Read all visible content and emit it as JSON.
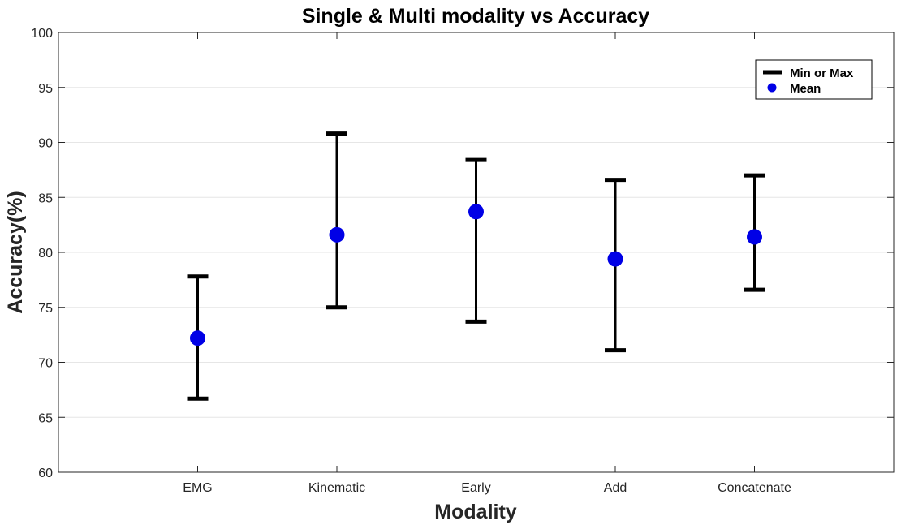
{
  "chart_data": {
    "type": "scatter",
    "title": "Single & Multi modality vs Accuracy",
    "xlabel": "Modality",
    "ylabel": "Accuracy(%)",
    "categories": [
      "EMG",
      "Kinematic",
      "Early",
      "Add",
      "Concatenate"
    ],
    "ylim": [
      60,
      100
    ],
    "yticks": [
      60,
      65,
      70,
      75,
      80,
      85,
      90,
      95,
      100
    ],
    "ytick_labels": [
      "60",
      "65",
      "70",
      "75",
      "80",
      "85",
      "90",
      "95",
      "100"
    ],
    "grid": "horizontal",
    "legend_position": "top-right",
    "legend": {
      "minmax_label": "Min or Max",
      "mean_label": "Mean"
    },
    "series": [
      {
        "name": "Mean",
        "values": [
          72.2,
          81.6,
          83.7,
          79.4,
          81.4
        ]
      },
      {
        "name": "Min",
        "values": [
          66.7,
          75.0,
          73.7,
          71.1,
          76.6
        ]
      },
      {
        "name": "Max",
        "values": [
          77.8,
          90.8,
          88.4,
          86.6,
          87.0
        ]
      }
    ],
    "colors": {
      "mean": "#0000e6",
      "range": "#000000",
      "grid": "#e6e6e6",
      "axis": "#262626"
    }
  }
}
